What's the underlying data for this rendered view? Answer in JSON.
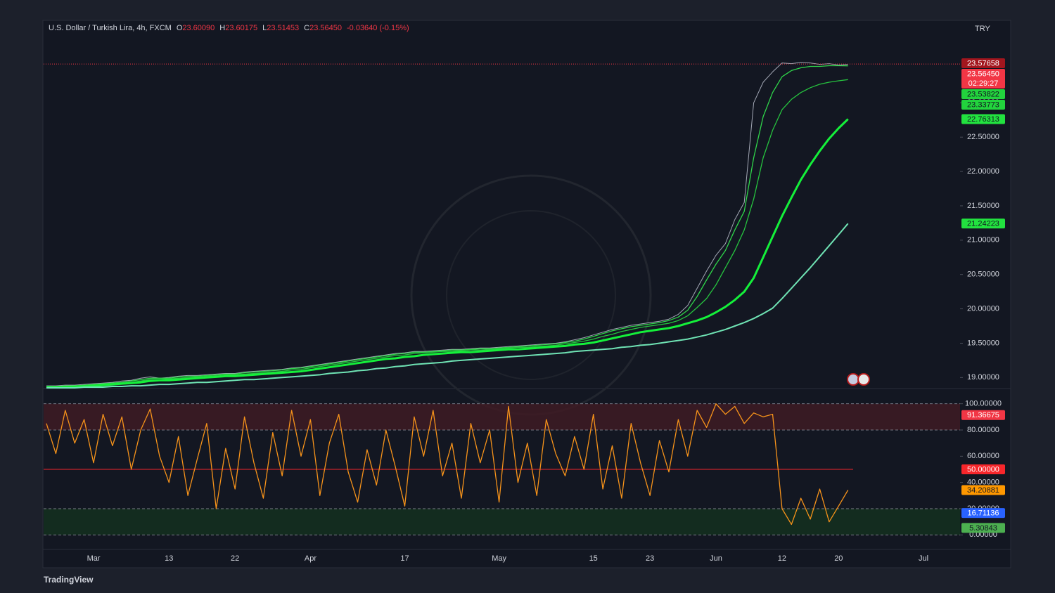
{
  "brand": "TradingView",
  "chart_data": [
    {
      "type": "line",
      "title": "U.S. Dollar / Turkish Lira, 4h, FXCM",
      "ohlc": [
        {
          "key": "O",
          "value": "23.60090"
        },
        {
          "key": "H",
          "value": "23.60175"
        },
        {
          "key": "L",
          "value": "23.51453"
        },
        {
          "key": "C",
          "value": "23.56450"
        }
      ],
      "change": "-0.03640 (-0.15%)",
      "y_label": "TRY",
      "ylim": [
        18.85,
        24.19
      ],
      "yticks": [
        {
          "value": 19,
          "label": "19.00000"
        },
        {
          "value": 19.5,
          "label": "19.50000"
        },
        {
          "value": 20,
          "label": "20.00000"
        },
        {
          "value": 20.5,
          "label": "20.50000"
        },
        {
          "value": 21,
          "label": "21.00000"
        },
        {
          "value": 21.5,
          "label": "21.50000"
        },
        {
          "value": 22,
          "label": "22.00000"
        },
        {
          "value": 22.5,
          "label": "22.50000"
        },
        {
          "value": 23,
          "label": "23.00000"
        }
      ],
      "grid": false,
      "series": [
        {
          "color": "#a3a8b5",
          "values": [
            18.88,
            18.88,
            18.89,
            18.89,
            18.9,
            18.91,
            18.92,
            18.93,
            18.95,
            18.96,
            18.99,
            19.01,
            18.99,
            19.0,
            19.02,
            19.03,
            19.03,
            19.04,
            19.05,
            19.06,
            19.06,
            19.08,
            19.09,
            19.1,
            19.11,
            19.12,
            19.14,
            19.15,
            19.17,
            19.19,
            19.21,
            19.23,
            19.25,
            19.27,
            19.29,
            19.31,
            19.33,
            19.35,
            19.36,
            19.38,
            19.38,
            19.39,
            19.4,
            19.41,
            19.41,
            19.42,
            19.43,
            19.43,
            19.44,
            19.45,
            19.46,
            19.47,
            19.48,
            19.49,
            19.5,
            19.52,
            19.55,
            19.58,
            19.62,
            19.66,
            19.7,
            19.73,
            19.76,
            19.78,
            19.8,
            19.82,
            19.85,
            19.92,
            20.05,
            20.3,
            20.55,
            20.78,
            20.95,
            21.3,
            21.55,
            23.0,
            23.3,
            23.45,
            23.58,
            23.57,
            23.59,
            23.58,
            23.56,
            23.57,
            23.55,
            23.56,
            null,
            null,
            null,
            null,
            null,
            null,
            null,
            null
          ]
        },
        {
          "color": "#2fd64a",
          "values": [
            18.87,
            18.87,
            18.88,
            18.88,
            18.89,
            18.9,
            18.91,
            18.92,
            18.93,
            18.95,
            18.97,
            18.99,
            18.99,
            18.99,
            19.01,
            19.02,
            19.02,
            19.03,
            19.04,
            19.05,
            19.05,
            19.07,
            19.08,
            19.09,
            19.1,
            19.11,
            19.13,
            19.14,
            19.16,
            19.18,
            19.2,
            19.22,
            19.24,
            19.26,
            19.28,
            19.3,
            19.32,
            19.34,
            19.35,
            19.37,
            19.37,
            19.38,
            19.39,
            19.4,
            19.4,
            19.41,
            19.42,
            19.42,
            19.43,
            19.44,
            19.45,
            19.46,
            19.47,
            19.48,
            19.49,
            19.51,
            19.53,
            19.56,
            19.6,
            19.64,
            19.68,
            19.71,
            19.74,
            19.76,
            19.78,
            19.8,
            19.83,
            19.88,
            19.98,
            20.18,
            20.42,
            20.65,
            20.85,
            21.15,
            21.42,
            22.2,
            22.8,
            23.15,
            23.38,
            23.47,
            23.51,
            23.53,
            23.53,
            23.54,
            23.54,
            23.53822,
            null,
            null,
            null,
            null,
            null,
            null,
            null,
            null
          ]
        },
        {
          "color": "#26c43f",
          "values": [
            18.86,
            18.86,
            18.87,
            18.87,
            18.88,
            18.89,
            18.9,
            18.91,
            18.92,
            18.93,
            18.95,
            18.97,
            18.97,
            18.98,
            18.99,
            19.0,
            19.01,
            19.02,
            19.03,
            19.04,
            19.04,
            19.05,
            19.06,
            19.07,
            19.08,
            19.09,
            19.11,
            19.12,
            19.14,
            19.16,
            19.18,
            19.2,
            19.22,
            19.24,
            19.26,
            19.28,
            19.3,
            19.32,
            19.33,
            19.35,
            19.36,
            19.37,
            19.38,
            19.38,
            19.39,
            19.4,
            19.4,
            19.41,
            19.42,
            19.43,
            19.44,
            19.44,
            19.45,
            19.46,
            19.47,
            19.49,
            19.51,
            19.53,
            19.56,
            19.6,
            19.63,
            19.67,
            19.7,
            19.73,
            19.75,
            19.77,
            19.79,
            19.83,
            19.9,
            20.02,
            20.15,
            20.35,
            20.6,
            20.85,
            21.15,
            21.6,
            22.2,
            22.6,
            22.9,
            23.05,
            23.15,
            23.22,
            23.27,
            23.3,
            23.32,
            23.33773,
            null,
            null,
            null,
            null,
            null,
            null,
            null,
            null
          ]
        },
        {
          "color": "#14f03a",
          "values": [
            18.86,
            18.86,
            18.86,
            18.87,
            18.87,
            18.88,
            18.89,
            18.9,
            18.91,
            18.92,
            18.93,
            18.95,
            18.96,
            18.96,
            18.97,
            18.98,
            18.99,
            19.0,
            19.01,
            19.02,
            19.02,
            19.03,
            19.04,
            19.05,
            19.06,
            19.07,
            19.08,
            19.09,
            19.11,
            19.13,
            19.15,
            19.17,
            19.19,
            19.21,
            19.23,
            19.25,
            19.27,
            19.28,
            19.3,
            19.31,
            19.33,
            19.34,
            19.35,
            19.36,
            19.37,
            19.37,
            19.38,
            19.39,
            19.4,
            19.41,
            19.41,
            19.42,
            19.43,
            19.44,
            19.45,
            19.46,
            19.48,
            19.49,
            19.51,
            19.54,
            19.57,
            19.6,
            19.63,
            19.66,
            19.68,
            19.7,
            19.72,
            19.75,
            19.79,
            19.83,
            19.88,
            19.95,
            20.03,
            20.13,
            20.25,
            20.45,
            20.75,
            21.05,
            21.35,
            21.62,
            21.88,
            22.1,
            22.3,
            22.48,
            22.63,
            22.76313,
            null,
            null,
            null,
            null,
            null,
            null,
            null,
            null
          ]
        },
        {
          "color": "#6fe3b4",
          "values": [
            18.85,
            18.85,
            18.85,
            18.85,
            18.86,
            18.86,
            18.86,
            18.87,
            18.87,
            18.88,
            18.88,
            18.89,
            18.9,
            18.9,
            18.91,
            18.92,
            18.93,
            18.93,
            18.94,
            18.95,
            18.96,
            18.97,
            18.97,
            18.98,
            18.99,
            19.0,
            19.01,
            19.02,
            19.03,
            19.04,
            19.06,
            19.07,
            19.08,
            19.1,
            19.11,
            19.13,
            19.14,
            19.16,
            19.17,
            19.19,
            19.2,
            19.21,
            19.22,
            19.24,
            19.25,
            19.26,
            19.27,
            19.28,
            19.29,
            19.3,
            19.31,
            19.32,
            19.33,
            19.34,
            19.35,
            19.36,
            19.38,
            19.39,
            19.4,
            19.41,
            19.42,
            19.44,
            19.45,
            19.47,
            19.48,
            19.5,
            19.52,
            19.54,
            19.56,
            19.59,
            19.62,
            19.66,
            19.7,
            19.75,
            19.8,
            19.86,
            19.93,
            20.01,
            20.15,
            20.3,
            20.45,
            20.6,
            20.76,
            20.92,
            21.08,
            21.24223,
            null,
            null,
            null,
            null,
            null,
            null,
            null,
            null
          ]
        }
      ],
      "tags": [
        {
          "value": 23.57658,
          "label": "23.57658",
          "color": "#a3161e"
        },
        {
          "value": 23.5645,
          "label": "23.56450",
          "color": "#f23645",
          "countdown": "02:29:27"
        },
        {
          "value": 23.53822,
          "label": "23.53822",
          "color": "#22d33d"
        },
        {
          "value": 23.33773,
          "label": "23.33773",
          "color": "#22d33d"
        },
        {
          "value": 22.76313,
          "label": "22.76313",
          "color": "#22e23f"
        },
        {
          "value": 21.24223,
          "label": "21.24223",
          "color": "#22e23f"
        }
      ]
    },
    {
      "type": "line",
      "categories": [
        null,
        null,
        null,
        null,
        null,
        "Mar",
        null,
        null,
        null,
        null,
        null,
        null,
        null,
        "13",
        null,
        null,
        null,
        null,
        null,
        null,
        "22",
        null,
        null,
        null,
        null,
        null,
        null,
        null,
        "Apr",
        null,
        null,
        null,
        null,
        null,
        null,
        null,
        null,
        null,
        "17",
        null,
        null,
        null,
        null,
        null,
        null,
        null,
        null,
        null,
        "May",
        null,
        null,
        null,
        null,
        null,
        null,
        null,
        null,
        null,
        "15",
        null,
        null,
        null,
        null,
        null,
        "23",
        null,
        null,
        null,
        null,
        null,
        null,
        "Jun",
        null,
        null,
        null,
        null,
        null,
        null,
        "12",
        null,
        null,
        null,
        null,
        null,
        "20",
        null,
        null,
        null,
        null,
        null,
        null,
        null,
        null,
        "Jul"
      ],
      "ylim": [
        -10,
        110
      ],
      "yticks": [
        {
          "value": 0,
          "label": "0.00000"
        },
        {
          "value": 20,
          "label": "20.00000"
        },
        {
          "value": 40,
          "label": "40.00000"
        },
        {
          "value": 60,
          "label": "60.00000"
        },
        {
          "value": 80,
          "label": "80.00000"
        },
        {
          "value": 100,
          "label": "100.00000"
        }
      ],
      "bands": [
        {
          "from": 80,
          "to": 100,
          "color": "#3e1b23"
        },
        {
          "from": 0,
          "to": 20,
          "color": "#14301f"
        }
      ],
      "midline": {
        "value": 50,
        "color": "#c4222b"
      },
      "series": [
        {
          "color": "#f7931a",
          "values": [
            85,
            62,
            95,
            70,
            88,
            55,
            92,
            68,
            90,
            50,
            80,
            96,
            60,
            40,
            75,
            30,
            58,
            85,
            20,
            66,
            35,
            90,
            55,
            28,
            78,
            45,
            95,
            60,
            88,
            30,
            70,
            92,
            48,
            25,
            65,
            38,
            80,
            52,
            22,
            90,
            60,
            95,
            45,
            70,
            28,
            85,
            55,
            80,
            25,
            98,
            40,
            70,
            30,
            88,
            62,
            45,
            75,
            50,
            92,
            35,
            68,
            28,
            85,
            55,
            30,
            72,
            48,
            88,
            60,
            95,
            82,
            100,
            92,
            98,
            85,
            93,
            90,
            92,
            20,
            8,
            28,
            12,
            35,
            10,
            22,
            34.20881,
            null,
            null,
            null,
            null,
            null,
            null,
            null,
            null
          ]
        }
      ],
      "tags": [
        {
          "value": 91.36675,
          "label": "91.36675",
          "color": "#f23645"
        },
        {
          "value": 50,
          "label": "50.00000",
          "color": "#f7262b"
        },
        {
          "value": 34.20881,
          "label": "34.20881",
          "color": "#ff9800"
        },
        {
          "value": 16.71136,
          "label": "16.71136",
          "color": "#2962ff"
        },
        {
          "value": 5.30843,
          "label": "5.30843",
          "color": "#4caf50"
        }
      ]
    }
  ]
}
